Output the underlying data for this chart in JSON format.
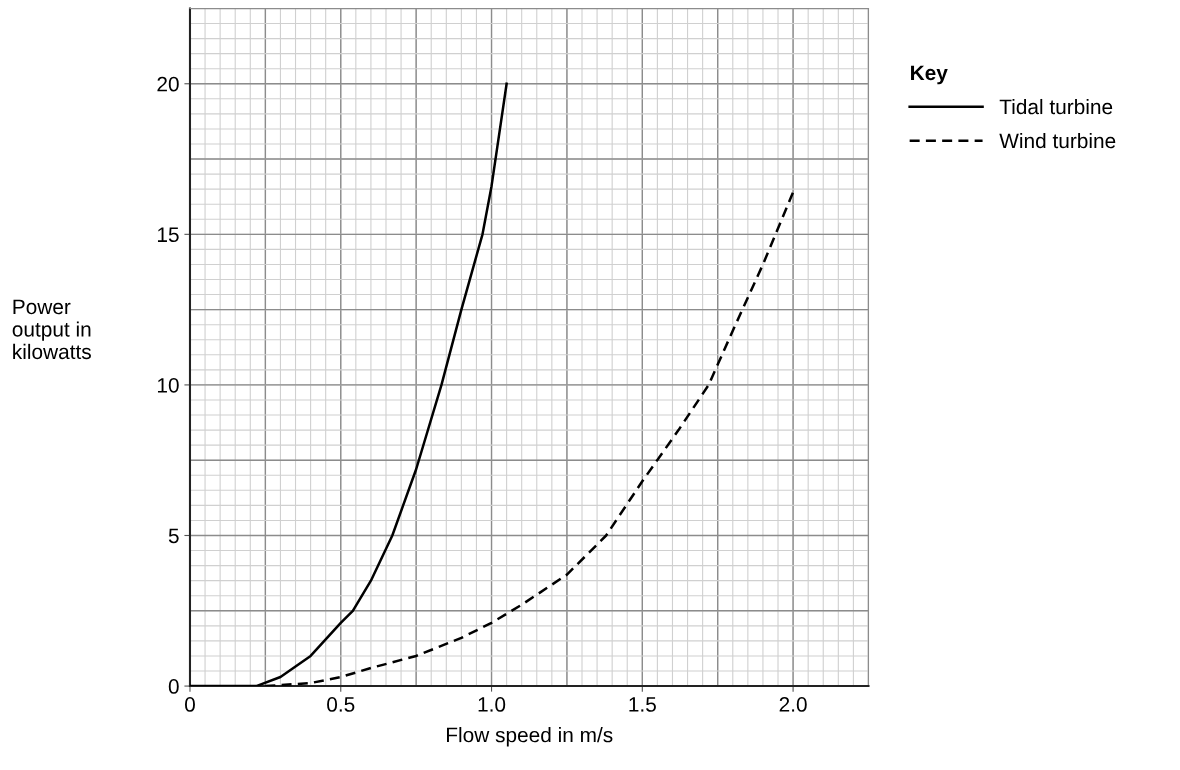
{
  "chart_data": {
    "type": "line",
    "xlabel": "Flow speed in m/s",
    "ylabel": "Power\noutput in\nkilowatts",
    "legend_title": "Key",
    "series": [
      {
        "name": "Tidal turbine",
        "color": "#000000",
        "line_style": "solid",
        "x": [
          0,
          0.22,
          0.3,
          0.4,
          0.5,
          0.54,
          0.6,
          0.671,
          0.75,
          0.834,
          0.9,
          0.97,
          1.0,
          1.05
        ],
        "values": [
          0,
          0,
          0.3,
          1.0,
          2.1,
          2.5,
          3.5,
          5,
          7.2,
          10,
          12.5,
          15,
          16.6,
          20
        ]
      },
      {
        "name": "Wind turbine",
        "color": "#000000",
        "line_style": "dashed",
        "x": [
          0.25,
          0.4,
          0.5,
          0.6,
          0.75,
          0.9,
          1.0,
          1.1,
          1.25,
          1.38,
          1.5,
          1.62,
          1.72,
          1.8,
          1.9,
          2.0
        ],
        "values": [
          0,
          0.1,
          0.3,
          0.6,
          1.0,
          1.6,
          2.1,
          2.7,
          3.7,
          5,
          6.8,
          8.5,
          10,
          11.8,
          14,
          16.4
        ]
      }
    ],
    "xlim": [
      0,
      2.25
    ],
    "xticks": [
      0,
      0.5,
      {
        "value": 1,
        "label": "1.0"
      },
      1.5,
      {
        "value": 2,
        "label": "2.0"
      }
    ],
    "ylim": [
      0,
      22.5
    ],
    "yticks": [
      0,
      5,
      10,
      15,
      20
    ],
    "grid": true,
    "legend": "top right",
    "marker": "none"
  }
}
